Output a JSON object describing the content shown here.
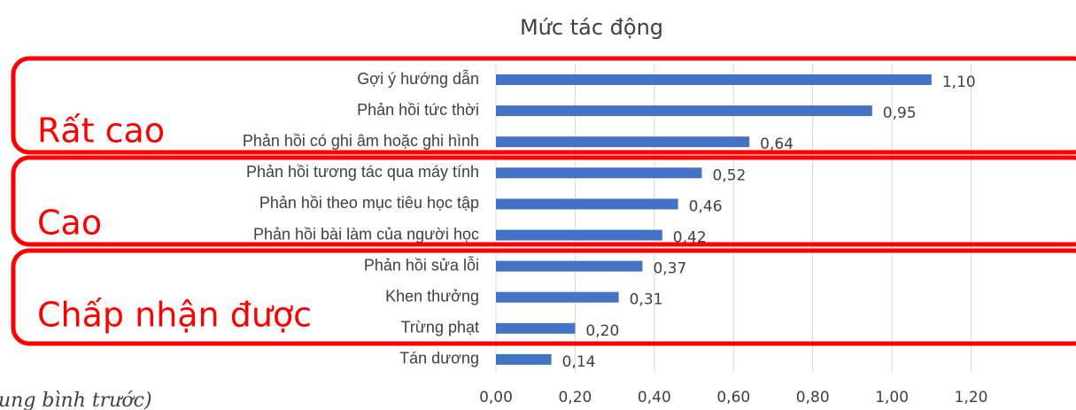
{
  "chart_data": {
    "type": "barh",
    "title": "Mức tác động",
    "categories": [
      "Gợi ý hướng dẫn",
      "Phản hồi tức thời",
      "Phản hồi có ghi âm hoặc ghi hình",
      "Phản hồi tương tác qua máy tính",
      "Phản hồi theo mục tiêu học tập",
      "Phản hồi bài làm của người học",
      "Phản hồi sửa lỗi",
      "Khen thưởng",
      "Trừng phạt",
      "Tán dương"
    ],
    "values": [
      1.1,
      0.95,
      0.64,
      0.52,
      0.46,
      0.42,
      0.37,
      0.31,
      0.2,
      0.14
    ],
    "value_labels": [
      "1,10",
      "0,95",
      "0,64",
      "0,52",
      "0,46",
      "0,42",
      "0,37",
      "0,31",
      "0,20",
      "0,14"
    ],
    "color": "#4472c4",
    "xlim": [
      0,
      1.4
    ],
    "xticks": [
      {
        "value": 0,
        "label": "0,00"
      },
      {
        "value": 0.2,
        "label": "0,20"
      },
      {
        "value": 0.4,
        "label": "0,40"
      },
      {
        "value": 0.6,
        "label": "0,60"
      },
      {
        "value": 0.8,
        "label": "0,80"
      },
      {
        "value": 1.0,
        "label": "1,00"
      },
      {
        "value": 1.2,
        "label": "1,20"
      }
    ],
    "grid": true,
    "groups": [
      "Rất cao",
      "Cao",
      "Chấp nhận được"
    ],
    "caption": "ung bình trước)"
  }
}
